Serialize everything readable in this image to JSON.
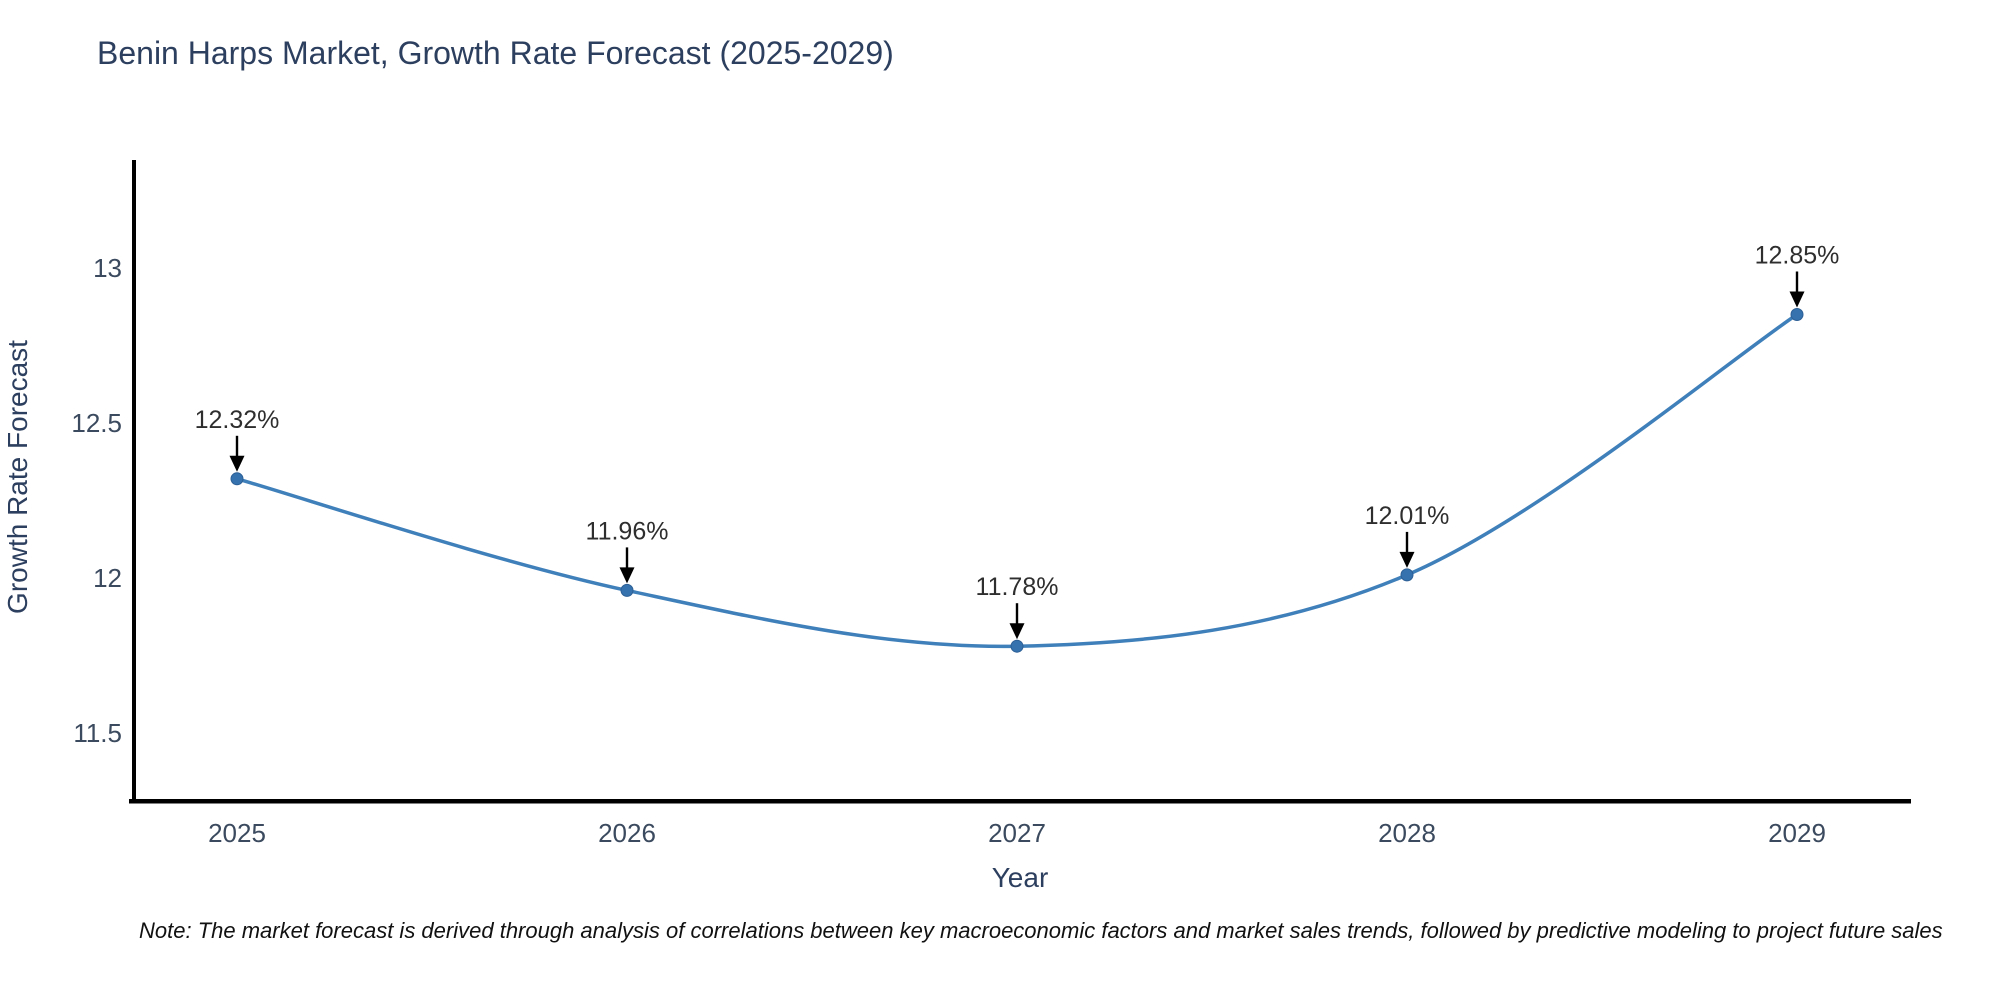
{
  "chart_data": {
    "type": "line",
    "title": "Benin Harps Market, Growth Rate Forecast (2025-2029)",
    "xlabel": "Year",
    "ylabel": "Growth Rate Forecast",
    "x": [
      2025,
      2026,
      2027,
      2028,
      2029
    ],
    "values": [
      12.32,
      11.96,
      11.78,
      12.01,
      12.85
    ],
    "point_labels": [
      "12.32%",
      "11.96%",
      "11.78%",
      "12.01%",
      "12.85%"
    ],
    "yticks": [
      13,
      12.5,
      12,
      11.5
    ],
    "ylim": [
      11.25,
      13.3
    ],
    "grid": false,
    "legend": "none",
    "note": "Note: The market forecast is derived through analysis of correlations between key macroeconomic factors and market sales trends, followed by predictive modeling to project future sales",
    "colors": {
      "line": "#3f7fba",
      "marker": "#3572ae",
      "marker_edge": "#2d5f95",
      "title": "#2d3f5e",
      "ticks": "#3b4a5e",
      "annotation": "#2e2e2e",
      "axis": "#000000"
    }
  }
}
